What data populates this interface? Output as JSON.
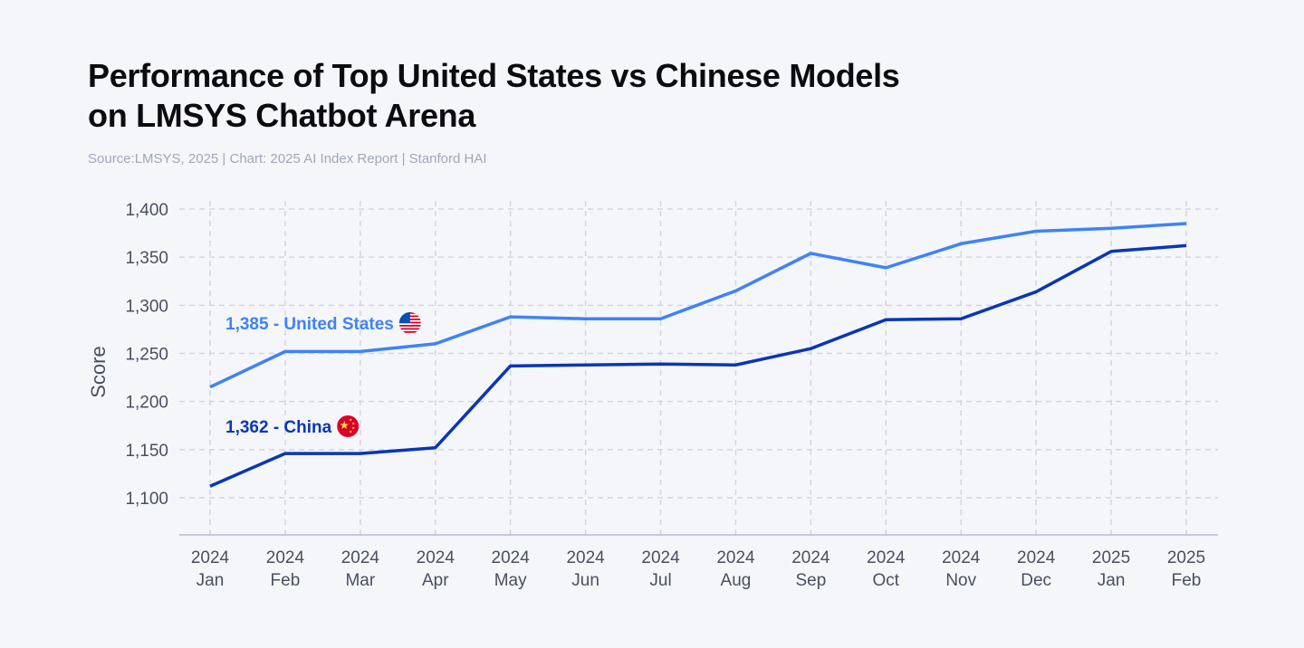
{
  "title_line1": "Performance of Top United States vs Chinese Models",
  "title_line2": "on LMSYS Chatbot Arena",
  "subtitle": "Source:LMSYS, 2025 | Chart: 2025 AI Index Report | Stanford HAI",
  "chart_data": {
    "type": "line",
    "ylabel": "Score",
    "xlabel": "",
    "ylim": [
      1062,
      1400
    ],
    "yticks": [
      1100,
      1150,
      1200,
      1250,
      1300,
      1350,
      1400
    ],
    "ytick_labels": [
      "1,100",
      "1,150",
      "1,200",
      "1,250",
      "1,300",
      "1,350",
      "1,400"
    ],
    "grid": true,
    "categories": [
      [
        "2024",
        "Jan"
      ],
      [
        "2024",
        "Feb"
      ],
      [
        "2024",
        "Mar"
      ],
      [
        "2024",
        "Apr"
      ],
      [
        "2024",
        "May"
      ],
      [
        "2024",
        "Jun"
      ],
      [
        "2024",
        "Jul"
      ],
      [
        "2024",
        "Aug"
      ],
      [
        "2024",
        "Sep"
      ],
      [
        "2024",
        "Oct"
      ],
      [
        "2024",
        "Nov"
      ],
      [
        "2024",
        "Dec"
      ],
      [
        "2025",
        "Jan"
      ],
      [
        "2025",
        "Feb"
      ]
    ],
    "series": [
      {
        "name": "United States",
        "label": "1,385 - United States",
        "color": "#3f82f7",
        "flag": "us-flag",
        "values": [
          1215,
          1252,
          1252,
          1260,
          1288,
          1286,
          1286,
          1315,
          1354,
          1339,
          1364,
          1377,
          1380,
          1385
        ]
      },
      {
        "name": "China",
        "label": "1,362 - China",
        "color": "#0a36b5",
        "flag": "china-flag",
        "values": [
          1112,
          1146,
          1146,
          1152,
          1237,
          1238,
          1239,
          1238,
          1255,
          1285,
          1286,
          1314,
          1356,
          1362
        ]
      }
    ]
  }
}
